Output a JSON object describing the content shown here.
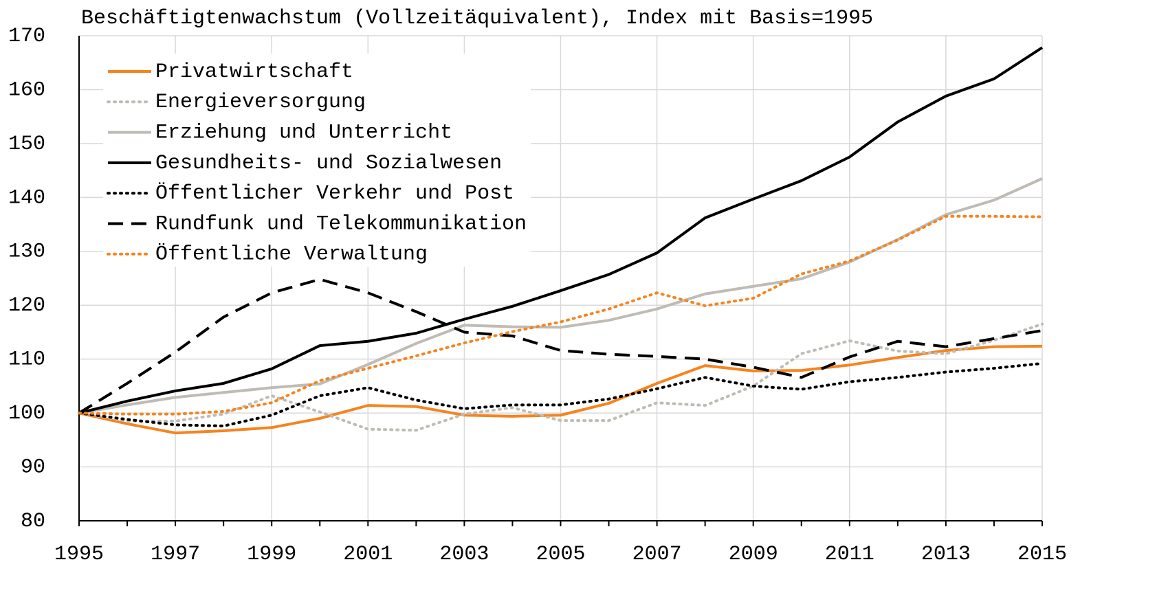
{
  "chart_data": {
    "type": "line",
    "title": "Beschäftigtenwachstum (Vollzeitäquivalent), Index mit Basis=1995",
    "x": [
      1995,
      1996,
      1997,
      1998,
      1999,
      2000,
      2001,
      2002,
      2003,
      2004,
      2005,
      2006,
      2007,
      2008,
      2009,
      2010,
      2011,
      2012,
      2013,
      2014,
      2015
    ],
    "xlim": [
      1995,
      2015
    ],
    "xticks": [
      1995,
      1997,
      1999,
      2001,
      2003,
      2005,
      2007,
      2009,
      2011,
      2013,
      2015
    ],
    "ylim": [
      80,
      170
    ],
    "yticks": [
      80,
      90,
      100,
      110,
      120,
      130,
      140,
      150,
      160,
      170
    ],
    "grid": true,
    "legend": "upper left",
    "series": [
      {
        "name": "Privatwirtschaft",
        "color": "#f5841f",
        "dash": "solid",
        "values": [
          100,
          98,
          96.3,
          96.7,
          97.3,
          99,
          101.4,
          101.2,
          99.6,
          99.4,
          99.6,
          101.8,
          105.5,
          108.8,
          107.8,
          107.9,
          108.9,
          110.3,
          111.6,
          112.3,
          112.4
        ]
      },
      {
        "name": "Energieversorgung",
        "color": "#bfbbb5",
        "dash": "dotted",
        "values": [
          100,
          98.5,
          98.5,
          99.8,
          103.2,
          100.2,
          97,
          96.8,
          99.8,
          101,
          98.6,
          98.6,
          101.9,
          101.4,
          105,
          111,
          113.4,
          111.5,
          111,
          113.5,
          116.5
        ]
      },
      {
        "name": "Erziehung und Unterricht",
        "color": "#bfbbb5",
        "dash": "solid",
        "values": [
          100,
          101.5,
          102.9,
          103.8,
          104.7,
          105.4,
          109,
          112.9,
          116.3,
          116,
          115.9,
          117.2,
          119.3,
          122.1,
          123.5,
          124.9,
          128,
          132.2,
          136.8,
          139.5,
          143.5
        ]
      },
      {
        "name": "Gesundheits- und Sozialwesen",
        "color": "#000000",
        "dash": "solid",
        "values": [
          100,
          102.2,
          104.1,
          105.5,
          108.2,
          112.5,
          113.3,
          114.8,
          117.4,
          119.8,
          122.7,
          125.7,
          129.7,
          136.2,
          139.7,
          143.1,
          147.5,
          154,
          158.8,
          162,
          167.8
        ]
      },
      {
        "name": "Öffentlicher Verkehr und Post",
        "color": "#000000",
        "dash": "dotted",
        "values": [
          100,
          98.8,
          97.8,
          97.6,
          99.6,
          103.2,
          104.7,
          102.4,
          100.8,
          101.5,
          101.5,
          102.6,
          104.5,
          106.6,
          105,
          104.4,
          105.8,
          106.6,
          107.6,
          108.3,
          109.2
        ]
      },
      {
        "name": "Rundfunk und Telekommunikation",
        "color": "#000000",
        "dash": "dashed",
        "values": [
          100,
          105.5,
          111.3,
          117.8,
          122.3,
          124.8,
          122.3,
          118.8,
          115,
          114.3,
          111.6,
          110.9,
          110.5,
          110,
          108.5,
          106.6,
          110.4,
          113.3,
          112.3,
          113.8,
          115.3
        ]
      },
      {
        "name": "Öffentliche Verwaltung",
        "color": "#f5841f",
        "dash": "dotted",
        "values": [
          100,
          99.8,
          99.8,
          100.3,
          101.9,
          106,
          108.3,
          110.6,
          113,
          115.1,
          116.9,
          119.3,
          122.3,
          119.9,
          121.3,
          125.8,
          128.2,
          132.1,
          136.5,
          136.5,
          136.4
        ]
      }
    ]
  }
}
